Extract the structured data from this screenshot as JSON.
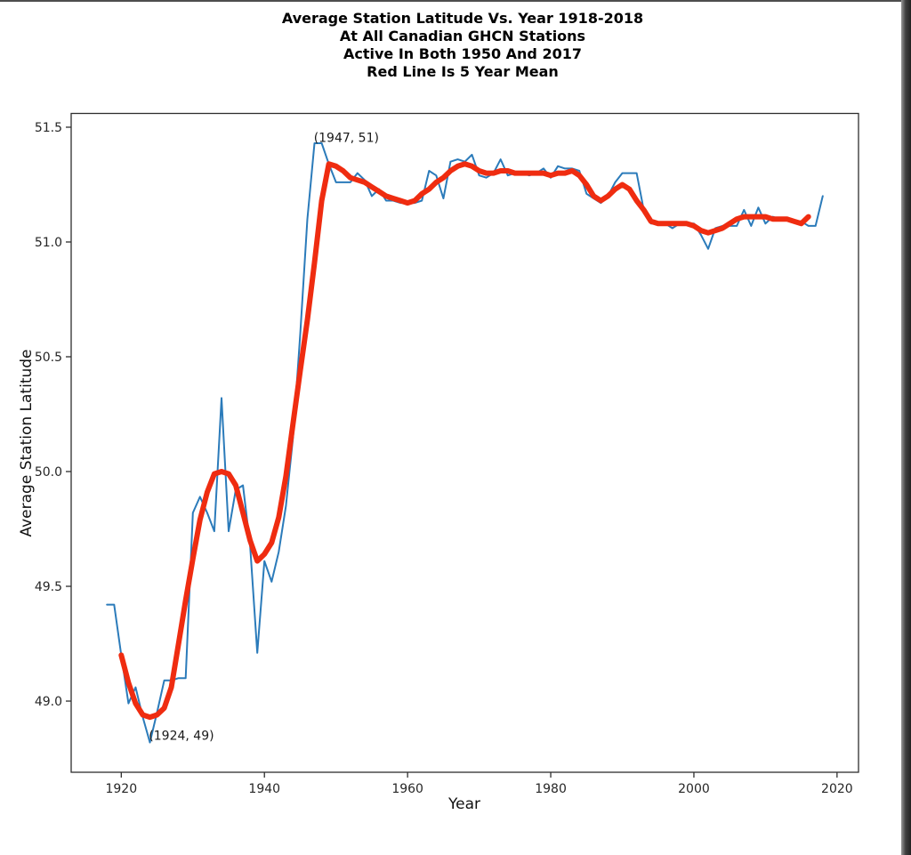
{
  "chart_data": {
    "type": "line",
    "title_lines": [
      "Average Station Latitude Vs. Year 1918-2018",
      "At All Canadian GHCN Stations",
      "Active In Both 1950 And 2017",
      "Red Line Is 5 Year Mean"
    ],
    "xlabel": "Year",
    "ylabel": "Average Station Latitude",
    "xlim": [
      1913,
      2023
    ],
    "ylim": [
      48.69,
      51.56
    ],
    "grid": false,
    "legend_position": "none",
    "x_ticks": [
      1920,
      1940,
      1960,
      1980,
      2000,
      2020
    ],
    "y_ticks": [
      "49.0",
      "49.5",
      "50.0",
      "50.5",
      "51.0",
      "51.5"
    ],
    "axis_color": "#2e2e2e",
    "series": [
      {
        "name": "annual-average-latitude",
        "color": "#2b7bba",
        "width": 2,
        "x_start": 1918,
        "values": [
          49.42,
          49.42,
          49.2,
          48.99,
          49.06,
          48.93,
          48.82,
          48.95,
          49.09,
          49.09,
          49.1,
          49.1,
          49.82,
          49.89,
          49.82,
          49.74,
          50.32,
          49.74,
          49.92,
          49.94,
          49.68,
          49.21,
          49.61,
          49.52,
          49.65,
          49.85,
          50.15,
          50.6,
          51.1,
          51.43,
          51.43,
          51.34,
          51.26,
          51.26,
          51.26,
          51.3,
          51.27,
          51.2,
          51.23,
          51.18,
          51.18,
          51.17,
          51.17,
          51.17,
          51.18,
          51.31,
          51.29,
          51.19,
          51.35,
          51.36,
          51.35,
          51.38,
          51.29,
          51.28,
          51.3,
          51.36,
          51.29,
          51.3,
          51.3,
          51.29,
          51.3,
          51.32,
          51.28,
          51.33,
          51.32,
          51.32,
          51.31,
          51.21,
          51.19,
          51.17,
          51.2,
          51.26,
          51.3,
          51.3,
          51.3,
          51.14,
          51.08,
          51.08,
          51.08,
          51.06,
          51.08,
          51.08,
          51.08,
          51.03,
          50.97,
          51.06,
          51.07,
          51.07,
          51.07,
          51.14,
          51.07,
          51.15,
          51.08,
          51.11,
          51.1,
          51.1,
          51.09,
          51.09,
          51.07,
          51.07,
          51.2
        ]
      },
      {
        "name": "5-year-mean",
        "color": "#ef2c10",
        "width": 6,
        "x_start": 1920,
        "values": [
          49.2,
          49.08,
          48.99,
          48.94,
          48.93,
          48.94,
          48.97,
          49.06,
          49.25,
          49.44,
          49.62,
          49.79,
          49.91,
          49.99,
          50.0,
          49.99,
          49.94,
          49.82,
          49.7,
          49.61,
          49.64,
          49.69,
          49.8,
          49.98,
          50.21,
          50.44,
          50.66,
          50.91,
          51.18,
          51.34,
          51.33,
          51.31,
          51.28,
          51.27,
          51.26,
          51.24,
          51.22,
          51.2,
          51.19,
          51.18,
          51.17,
          51.18,
          51.21,
          51.23,
          51.26,
          51.28,
          51.31,
          51.33,
          51.34,
          51.33,
          51.31,
          51.3,
          51.3,
          51.31,
          51.31,
          51.3,
          51.3,
          51.3,
          51.3,
          51.3,
          51.29,
          51.3,
          51.3,
          51.31,
          51.29,
          51.25,
          51.2,
          51.18,
          51.2,
          51.23,
          51.25,
          51.23,
          51.18,
          51.14,
          51.09,
          51.08,
          51.08,
          51.08,
          51.08,
          51.08,
          51.07,
          51.05,
          51.04,
          51.05,
          51.06,
          51.08,
          51.1,
          51.11,
          51.11,
          51.11,
          51.11,
          51.1,
          51.1,
          51.1,
          51.09,
          51.08,
          51.11
        ]
      }
    ],
    "annotations": [
      {
        "text": "(1947, 51)",
        "x": 1946.9,
        "y": 51.455
      },
      {
        "text": "(1924, 49)",
        "x": 1923.85,
        "y": 48.85
      }
    ]
  },
  "window_chrome": {
    "top_edge_color": "#4d4d4d",
    "right_edge_gradient": [
      "#979797",
      "#3f3f3f",
      "#222222"
    ]
  }
}
